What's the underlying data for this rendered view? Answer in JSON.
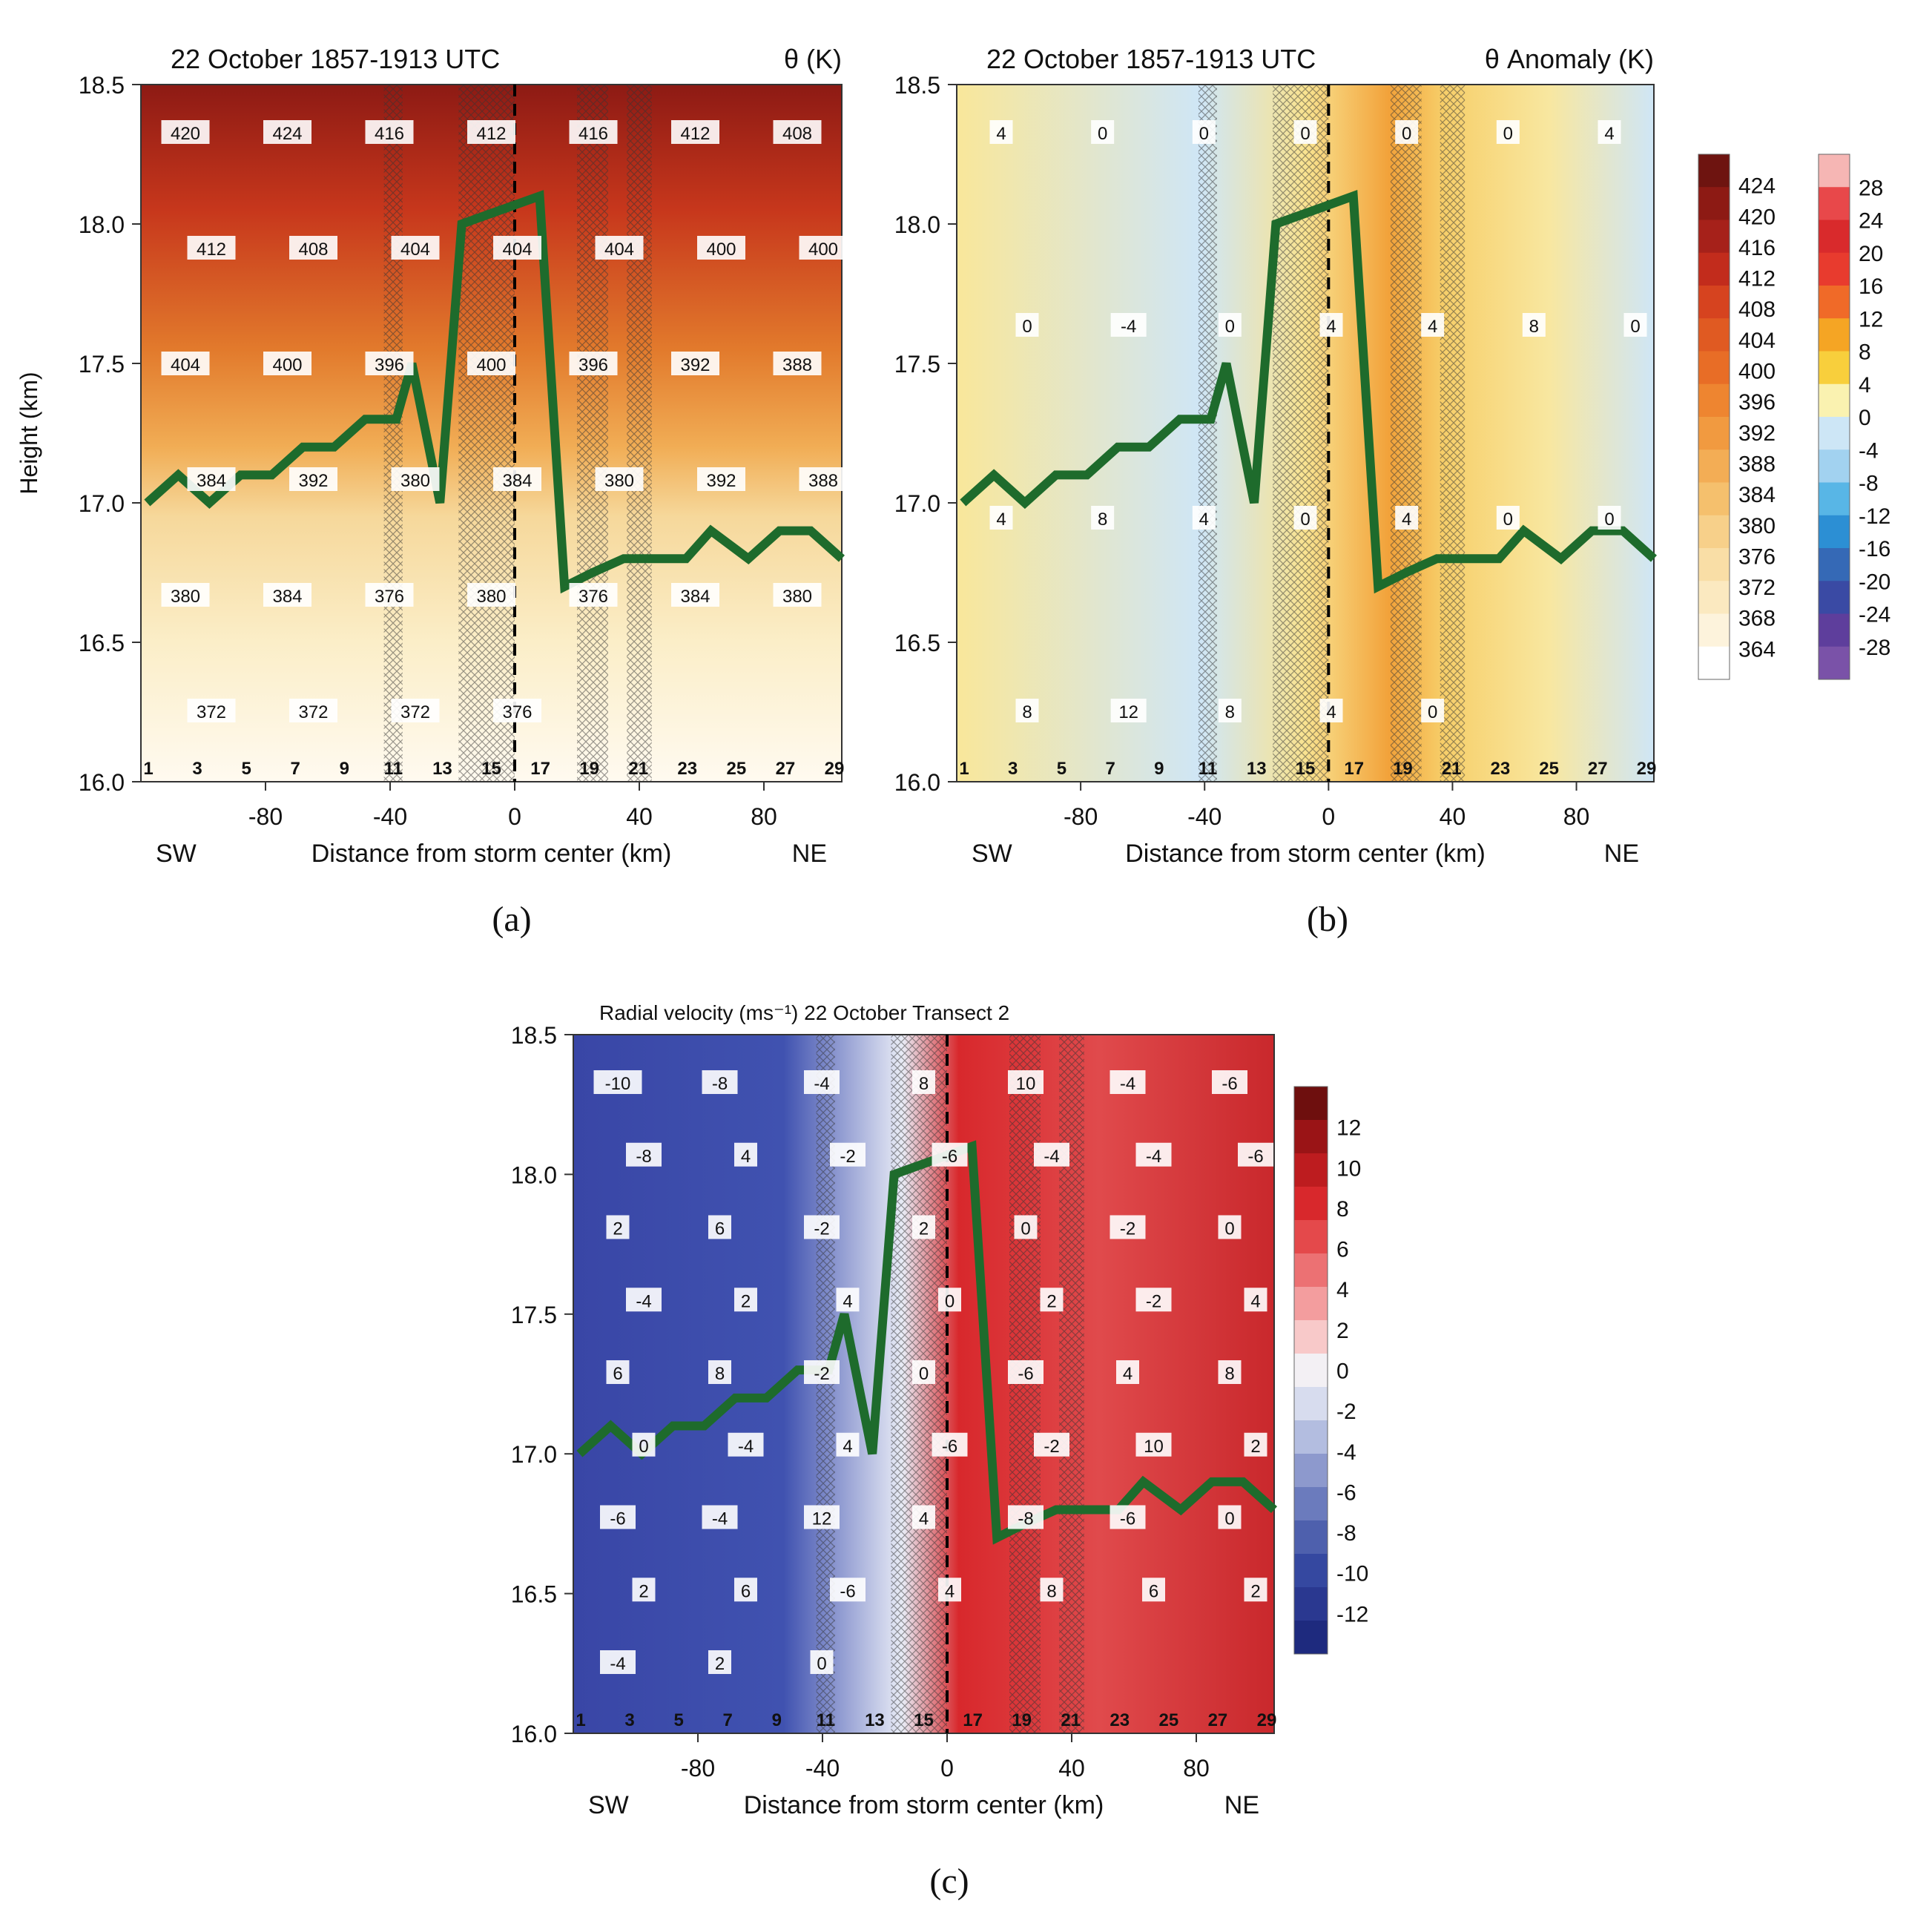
{
  "panels": [
    {
      "id": "a",
      "caption": "(a)",
      "title_left": "22 October 1857-1913 UTC",
      "title_right": "θ (K)",
      "ylabel": "Height (km)",
      "xlabel": "Distance from storm center (km)",
      "x_left_label": "SW",
      "x_right_label": "NE",
      "colorbar_levels": [
        "424",
        "420",
        "416",
        "412",
        "408",
        "404",
        "400",
        "396",
        "392",
        "388",
        "384",
        "380",
        "376",
        "372",
        "368",
        "364"
      ],
      "contour_labels": [
        "420",
        "424",
        "416",
        "412",
        "416",
        "412",
        "408",
        "412",
        "408",
        "404",
        "404",
        "404",
        "400",
        "400",
        "404",
        "400",
        "396",
        "400",
        "396",
        "392",
        "388",
        "384",
        "392",
        "380",
        "384",
        "380",
        "392",
        "388",
        "380",
        "384",
        "376",
        "380",
        "376",
        "384",
        "380",
        "372",
        "372",
        "372",
        "376"
      ]
    },
    {
      "id": "b",
      "caption": "(b)",
      "title_left": "22 October 1857-1913 UTC",
      "title_right": "θ Anomaly (K)",
      "xlabel": "Distance from storm center (km)",
      "x_left_label": "SW",
      "x_right_label": "NE",
      "colorbar_levels": [
        "28",
        "24",
        "20",
        "16",
        "12",
        "8",
        "4",
        "0",
        "-4",
        "-8",
        "-12",
        "-16",
        "-20",
        "-24",
        "-28"
      ],
      "contour_labels": [
        "4",
        "0",
        "0",
        "0",
        "0",
        "0",
        "4",
        "0",
        "-4",
        "0",
        "4",
        "4",
        "8",
        "0",
        "4",
        "8",
        "4",
        "0",
        "4",
        "0",
        "0",
        "8",
        "12",
        "8",
        "4",
        "0"
      ]
    },
    {
      "id": "c",
      "caption": "(c)",
      "title": "Radial velocity (ms⁻¹) 22 October Transect 2",
      "xlabel": "Distance from storm center (km)",
      "x_left_label": "SW",
      "x_right_label": "NE",
      "colorbar_levels": [
        "12",
        "10",
        "8",
        "6",
        "4",
        "2",
        "0",
        "-2",
        "-4",
        "-6",
        "-8",
        "-10",
        "-12"
      ],
      "contour_labels": [
        "-10",
        "-8",
        "-4",
        "8",
        "10",
        "-4",
        "-6",
        "-8",
        "4",
        "-2",
        "-6",
        "-4",
        "-4",
        "-6",
        "2",
        "6",
        "-2",
        "2",
        "0",
        "-2",
        "0",
        "-4",
        "2",
        "4",
        "0",
        "2",
        "-2",
        "4",
        "6",
        "8",
        "-2",
        "0",
        "-6",
        "4",
        "8",
        "0",
        "-4",
        "4",
        "-6",
        "-2",
        "10",
        "2",
        "-6",
        "-4",
        "12",
        "4",
        "-8",
        "-6",
        "0",
        "2",
        "6",
        "-6",
        "4",
        "8",
        "6",
        "2",
        "-4",
        "2",
        "0"
      ]
    }
  ],
  "chart_data": [
    {
      "type": "contour",
      "panel": "a",
      "title": "22 October 1857-1913 UTC",
      "variable": "θ (K)",
      "x_ticks": [
        -80,
        -40,
        0,
        40,
        80
      ],
      "y_ticks": [
        16.0,
        16.5,
        17.0,
        17.5,
        18.0,
        18.5
      ],
      "xlim": [
        -120,
        105
      ],
      "ylim": [
        16.0,
        18.5
      ],
      "xlabel": "Distance from storm center (km)",
      "ylabel": "Height (km)",
      "column_numbers": [
        "1",
        "3",
        "5",
        "7",
        "9",
        "11",
        "13",
        "15",
        "17",
        "19",
        "21",
        "23",
        "25",
        "27",
        "29"
      ],
      "cloud_top_line": {
        "x": [
          -118,
          -108,
          -98,
          -88,
          -78,
          -68,
          -58,
          -48,
          -38,
          -33,
          -24,
          -17,
          8,
          16,
          25,
          35,
          45,
          55,
          63,
          75,
          85,
          95,
          105
        ],
        "y": [
          17.0,
          17.1,
          17.0,
          17.1,
          17.1,
          17.2,
          17.2,
          17.3,
          17.3,
          17.5,
          17.0,
          18.0,
          18.1,
          16.7,
          16.75,
          16.8,
          16.8,
          16.8,
          16.9,
          16.8,
          16.9,
          16.9,
          16.8
        ]
      }
    },
    {
      "type": "contour",
      "panel": "b",
      "title": "22 October 1857-1913 UTC",
      "variable": "θ Anomaly (K)",
      "x_ticks": [
        -80,
        -40,
        0,
        40,
        80
      ],
      "y_ticks": [
        16.0,
        16.5,
        17.0,
        17.5,
        18.0,
        18.5
      ],
      "xlim": [
        -120,
        105
      ],
      "ylim": [
        16.0,
        18.5
      ],
      "xlabel": "Distance from storm center (km)",
      "column_numbers": [
        "1",
        "3",
        "5",
        "7",
        "9",
        "11",
        "13",
        "15",
        "17",
        "19",
        "21",
        "23",
        "25",
        "27",
        "29"
      ]
    },
    {
      "type": "contour",
      "panel": "c",
      "title": "Radial velocity (ms⁻¹) 22 October Transect 2",
      "x_ticks": [
        -80,
        -40,
        0,
        40,
        80
      ],
      "y_ticks": [
        16.0,
        16.5,
        17.0,
        17.5,
        18.0,
        18.5
      ],
      "xlim": [
        -120,
        105
      ],
      "ylim": [
        16.0,
        18.5
      ],
      "xlabel": "Distance from storm center (km)",
      "column_numbers": [
        "1",
        "3",
        "5",
        "7",
        "9",
        "11",
        "13",
        "15",
        "17",
        "19",
        "21",
        "23",
        "25",
        "27",
        "29"
      ]
    }
  ]
}
